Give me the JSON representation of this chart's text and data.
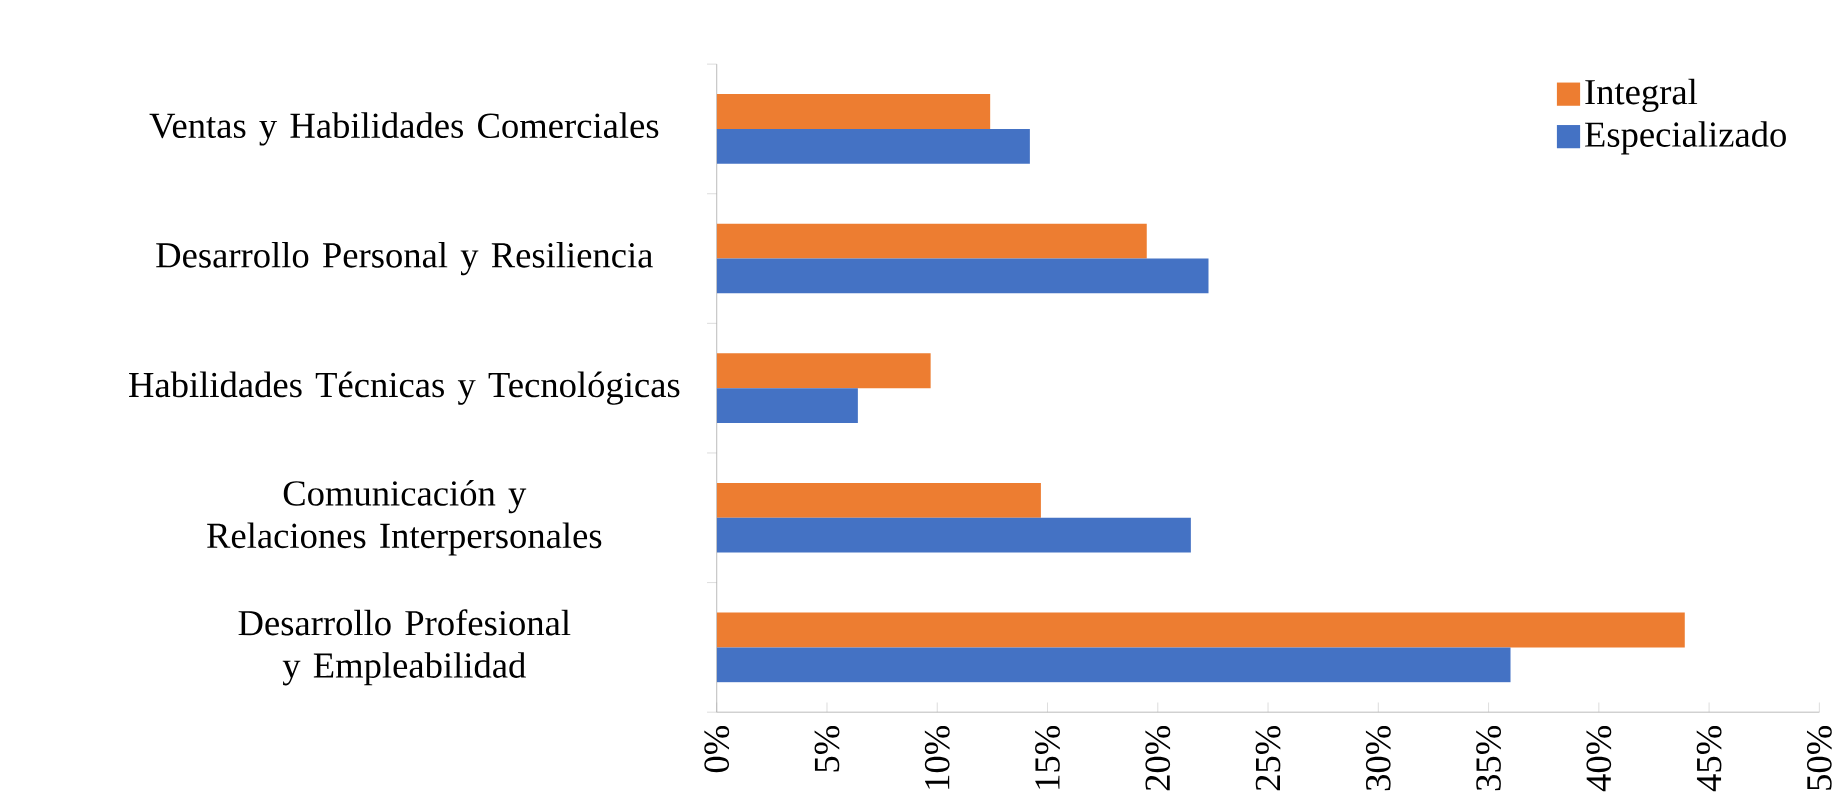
{
  "chart_data": {
    "type": "bar",
    "orientation": "horizontal",
    "categories": [
      "Ventas y Habilidades Comerciales",
      "Desarrollo Personal y Resiliencia",
      "Habilidades Técnicas y Tecnológicas",
      "Comunicación y Relaciones Interpersonales",
      "Desarrollo Profesional y Empleabilidad"
    ],
    "series": [
      {
        "name": "Integral",
        "color": "#ed7d31",
        "values": [
          12.4,
          19.5,
          9.7,
          14.7,
          43.9
        ]
      },
      {
        "name": "Especializado",
        "color": "#4472c4",
        "values": [
          14.2,
          22.3,
          6.4,
          21.5,
          36.0
        ]
      }
    ],
    "xlim": [
      0,
      50
    ],
    "xticks": [
      {
        "value": 0,
        "label": "0%"
      },
      {
        "value": 5,
        "label": "5%"
      },
      {
        "value": 10,
        "label": "10%"
      },
      {
        "value": 15,
        "label": "15%"
      },
      {
        "value": 20,
        "label": "20%"
      },
      {
        "value": 25,
        "label": "25%"
      },
      {
        "value": 30,
        "label": "30%"
      },
      {
        "value": 35,
        "label": "35%"
      },
      {
        "value": 40,
        "label": "40%"
      },
      {
        "value": 45,
        "label": "45%"
      },
      {
        "value": 50,
        "label": "50%"
      }
    ],
    "legend": "top right"
  }
}
